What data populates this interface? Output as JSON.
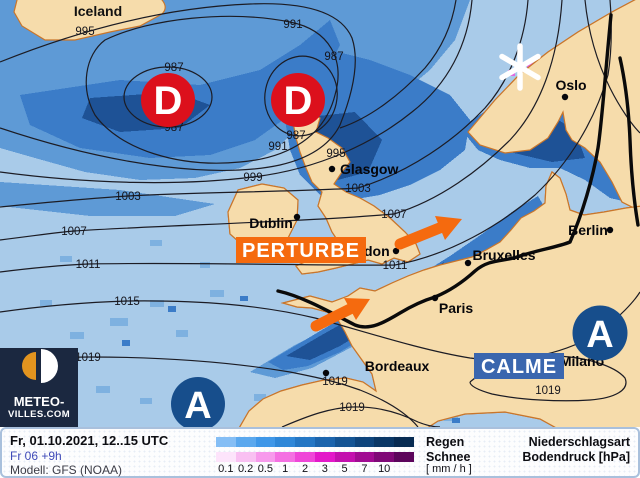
{
  "map": {
    "region_label": "Iceland",
    "cities": [
      {
        "name": "Oslo"
      },
      {
        "name": "Glasgow"
      },
      {
        "name": "Dublin"
      },
      {
        "name": "London"
      },
      {
        "name": "Berlin"
      },
      {
        "name": "Bruxelles"
      },
      {
        "name": "Paris"
      },
      {
        "name": "Bordeaux"
      },
      {
        "name": "Milano"
      }
    ],
    "isobar_labels": [
      "995",
      "991",
      "987",
      "987",
      "987",
      "991",
      "987",
      "995",
      "999",
      "1003",
      "1003",
      "1007",
      "1007",
      "1011",
      "1011",
      "1015",
      "1019",
      "1019",
      "1019",
      "1019"
    ],
    "pressure_centers": [
      {
        "letter": "D",
        "meaning": "depression-low"
      },
      {
        "letter": "D",
        "meaning": "depression-low"
      },
      {
        "letter": "A",
        "meaning": "anticyclone-high"
      },
      {
        "letter": "A",
        "meaning": "anticyclone-high"
      }
    ],
    "annotations": [
      {
        "label": "PERTURBE"
      },
      {
        "label": "CALME"
      }
    ],
    "colors": {
      "low_red": "#dc101c",
      "high_blue": "#174e8c",
      "orange": "#f56a0e",
      "calme_blue": "#3a66ae",
      "sea": "#a9cbe9",
      "land": "#f6dcab",
      "coast": "#c9762b",
      "logo_navy": "#1b2840",
      "logo_orange": "#e2941f"
    }
  },
  "footer": {
    "datetime": "Fr, 01.10.2021, 12..15 UTC",
    "run": "Fr 06 +9h",
    "model": "Modell: GFS (NOAA)",
    "legend": {
      "rain_label": "Regen",
      "snow_label": "Schnee",
      "unit_label": "[ mm / h ]",
      "ticks": [
        "0.1",
        "0.2",
        "0.5",
        "1",
        "2",
        "3",
        "5",
        "7",
        "10"
      ],
      "rain_colors": [
        "#85bef5",
        "#5ba8ee",
        "#3f97e8",
        "#2f87d8",
        "#2476c4",
        "#1b64ad",
        "#145494",
        "#0e447c",
        "#0a3766",
        "#072b52"
      ],
      "snow_colors": [
        "#fde4fb",
        "#f9c0f2",
        "#f79aec",
        "#f470e2",
        "#ef46d8",
        "#e318c9",
        "#c310ae",
        "#a10b92",
        "#7f0877",
        "#5c055c"
      ],
      "right_title1": "Niederschlagsart",
      "right_title2": "Bodendruck [hPa]"
    }
  },
  "logo": {
    "line1": "METEO-",
    "line2": "VILLES.COM"
  }
}
